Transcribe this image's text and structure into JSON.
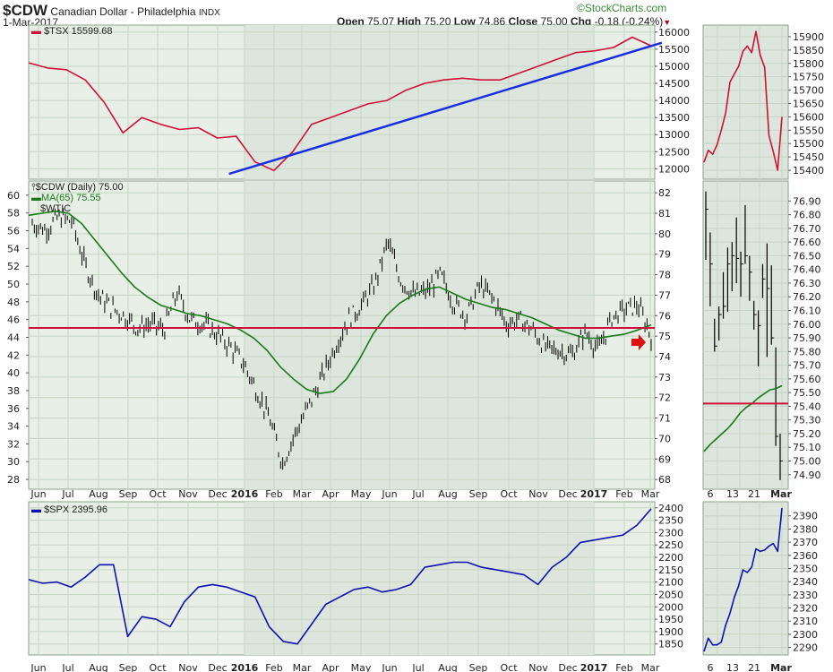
{
  "header": {
    "symbol": "$CDW",
    "name": "Canadian Dollar - Philadelphia",
    "exchange": "INDX",
    "date": "1-Mar-2017",
    "open_label": "Open",
    "open": "75.07",
    "high_label": "High",
    "high": "75.20",
    "low_label": "Low",
    "low": "74.86",
    "close_label": "Close",
    "close": "75.00",
    "chg_label": "Chg",
    "chg": "-0.18 (-0.24%)",
    "watermark": "©StockCharts.com"
  },
  "colors": {
    "tsx": "#d0103a",
    "cdw": "#000000",
    "ma": "#1a7a1a",
    "spx": "#1010b0",
    "hline": "#d0103a",
    "trend": "#1a2ee0",
    "bg": "#e8efe6",
    "bg_shade": "#dde6dc",
    "grid": "#c5d6c3"
  },
  "chart_data": [
    {
      "type": "line",
      "name": "top-panel",
      "legend": "$TSX 15599.68",
      "ylim": [
        11800,
        16100
      ],
      "yticks": [
        12000,
        12500,
        13000,
        13500,
        14000,
        14500,
        15000,
        15500,
        16000
      ],
      "series": [
        {
          "name": "$TSX",
          "values": [
            15100,
            14950,
            14900,
            14600,
            13950,
            13050,
            13500,
            13300,
            13150,
            13200,
            12900,
            12950,
            12200,
            11950,
            12500,
            13300,
            13500,
            13700,
            13900,
            14000,
            14300,
            14500,
            14600,
            14650,
            14600,
            14600,
            14800,
            15000,
            15200,
            15400,
            15450,
            15550,
            15850,
            15600
          ]
        }
      ],
      "trendline": {
        "from": [
          0.37,
          11850
        ],
        "to": [
          1.0,
          15650
        ]
      }
    },
    {
      "type": "ohlc",
      "name": "middle-panel",
      "legend": "$CDW (Daily) 75.00",
      "ma_legend": "MA(65) 75.55",
      "overlay_label": "$WTIC",
      "ylim_right": [
        67.7,
        82.4
      ],
      "yticks_right": [
        68,
        69,
        70,
        71,
        72,
        73,
        74,
        75,
        76,
        77,
        78,
        79,
        80,
        81,
        82
      ],
      "ylim_left": [
        27.3,
        61.2
      ],
      "yticks_left": [
        28,
        30,
        32,
        34,
        36,
        38,
        40,
        42,
        44,
        46,
        48,
        50,
        52,
        54,
        56,
        58,
        60
      ],
      "horizontal_line": 75.4,
      "series": [
        {
          "name": "$CDW",
          "values": [
            80.5,
            80.2,
            80.8,
            80.6,
            78.5,
            77.0,
            76.4,
            76.0,
            75.4,
            75.6,
            75.3,
            77.1,
            75.8,
            75.6,
            75.1,
            74.5,
            73.7,
            72.4,
            71.0,
            68.8,
            70.3,
            71.6,
            73.0,
            74.5,
            75.8,
            76.5,
            77.5,
            79.6,
            77.7,
            77.0,
            77.2,
            78.0,
            76.6,
            76.0,
            77.5,
            76.8,
            75.6,
            75.8,
            75.3,
            74.4,
            74.3,
            74.1,
            75.2,
            74.3,
            75.9,
            76.3,
            76.5,
            75.0
          ]
        },
        {
          "name": "MA(65)",
          "values": [
            80.9,
            81.0,
            81.1,
            81.0,
            80.5,
            79.7,
            78.9,
            78.1,
            77.4,
            76.9,
            76.5,
            76.3,
            76.1,
            76.0,
            75.8,
            75.6,
            75.3,
            74.9,
            74.3,
            73.5,
            72.9,
            72.4,
            72.2,
            72.3,
            72.9,
            73.9,
            75.1,
            76.0,
            76.6,
            77.0,
            77.3,
            77.4,
            77.1,
            76.8,
            76.6,
            76.4,
            76.3,
            76.1,
            75.9,
            75.6,
            75.3,
            75.1,
            74.9,
            74.9,
            75.0,
            75.1,
            75.3,
            75.55
          ]
        }
      ]
    },
    {
      "type": "line",
      "name": "bottom-panel",
      "legend": "$SPX 2395.96",
      "ylim": [
        1820,
        2410
      ],
      "yticks": [
        1850,
        1900,
        1950,
        2000,
        2050,
        2100,
        2150,
        2200,
        2250,
        2300,
        2350,
        2400
      ],
      "series": [
        {
          "name": "$SPX",
          "values": [
            2110,
            2095,
            2100,
            2080,
            2120,
            2170,
            2170,
            1880,
            1960,
            1950,
            1920,
            2020,
            2080,
            2090,
            2080,
            2060,
            2040,
            1920,
            1860,
            1850,
            1930,
            2010,
            2040,
            2070,
            2080,
            2060,
            2070,
            2090,
            2160,
            2170,
            2180,
            2180,
            2160,
            2150,
            2140,
            2130,
            2090,
            2160,
            2200,
            2260,
            2270,
            2280,
            2290,
            2330,
            2396
          ]
        }
      ]
    }
  ],
  "xaxis": {
    "labels": [
      "Jun",
      "Jul",
      "Aug",
      "Sep",
      "Oct",
      "Nov",
      "Dec",
      "2016",
      "Feb",
      "Mar",
      "Apr",
      "May",
      "Jun",
      "Jul",
      "Aug",
      "Sep",
      "Oct",
      "Nov",
      "Dec",
      "2017",
      "Feb",
      "Mar"
    ],
    "bold": [
      "2016",
      "2017"
    ]
  },
  "zoom_panels": {
    "xlabels": [
      "6",
      "13",
      "21",
      "Mar"
    ],
    "tsx": {
      "ylim": [
        15380,
        15930
      ],
      "yticks": [
        15400,
        15450,
        15500,
        15550,
        15600,
        15650,
        15700,
        15750,
        15800,
        15850,
        15900
      ],
      "values": [
        15430,
        15475,
        15460,
        15495,
        15550,
        15615,
        15730,
        15760,
        15790,
        15845,
        15865,
        15840,
        15920,
        15830,
        15785,
        15530,
        15470,
        15400,
        15600
      ]
    },
    "cdw": {
      "ylim": [
        74.82,
        77.02
      ],
      "yticks": [
        "74.90",
        "75.00",
        "75.10",
        "75.20",
        "75.30",
        "75.40",
        "75.50",
        "75.60",
        "75.70",
        "75.80",
        "75.90",
        "76.00",
        "76.10",
        "76.20",
        "76.30",
        "76.40",
        "76.50",
        "76.60",
        "76.70",
        "76.80",
        "76.90"
      ],
      "hlc": [
        [
          76.97,
          76.47,
          76.84
        ],
        [
          76.67,
          76.13,
          76.44
        ],
        [
          76.04,
          75.8,
          75.84
        ],
        [
          76.13,
          75.88,
          76.07
        ],
        [
          76.38,
          76.04,
          76.13
        ],
        [
          76.56,
          76.09,
          76.44
        ],
        [
          76.6,
          76.24,
          76.5
        ],
        [
          76.78,
          76.3,
          76.48
        ],
        [
          76.53,
          76.2,
          76.44
        ],
        [
          76.87,
          76.44,
          76.5
        ],
        [
          76.5,
          76.17,
          76.38
        ],
        [
          76.17,
          75.96,
          76.07
        ],
        [
          76.1,
          75.69,
          75.99
        ],
        [
          76.44,
          76.19,
          76.33
        ],
        [
          76.59,
          75.76,
          76.26
        ],
        [
          76.43,
          75.85,
          75.9
        ],
        [
          75.83,
          75.11,
          75.18
        ],
        [
          75.2,
          74.86,
          75.0
        ]
      ],
      "ma": [
        75.07,
        75.12,
        75.16,
        75.2,
        75.24,
        75.29,
        75.35,
        75.39,
        75.42,
        75.46,
        75.49,
        75.52,
        75.53,
        75.55
      ],
      "hline": 75.42
    },
    "spx": {
      "ylim": [
        2287,
        2398
      ],
      "yticks": [
        2290,
        2300,
        2310,
        2320,
        2330,
        2340,
        2350,
        2360,
        2370,
        2380,
        2390
      ],
      "values": [
        2287,
        2297,
        2292,
        2292,
        2294,
        2307,
        2316,
        2328,
        2337,
        2349,
        2347,
        2351,
        2365,
        2363,
        2364,
        2367,
        2369,
        2363,
        2396
      ]
    }
  }
}
